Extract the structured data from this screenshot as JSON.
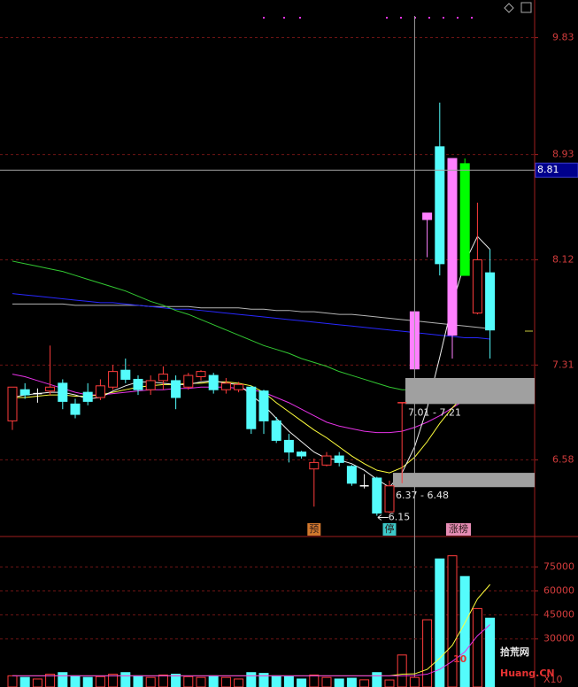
{
  "chart_data": [
    {
      "type": "candlestick",
      "ylim": [
        5.99,
        10.12
      ],
      "yticks": [
        9.83,
        8.93,
        8.12,
        7.31,
        6.58
      ],
      "up_color": "#ff3c3c",
      "open": [
        6.88,
        7.12,
        7.08,
        7.11,
        7.17,
        7.01,
        7.1,
        7.06,
        7.14,
        7.27,
        7.2,
        7.12,
        7.19,
        7.19,
        7.14,
        7.22,
        7.23,
        7.12,
        7.12,
        7.14,
        7.11,
        6.88,
        6.73,
        6.64,
        6.51,
        6.54,
        6.61,
        6.53,
        6.38,
        6.44,
        6.18,
        7.01,
        7.28,
        8.43,
        8.99,
        7.54,
        8.86,
        7.71,
        8.02
      ],
      "high": [
        7.14,
        7.17,
        7.13,
        7.46,
        7.2,
        7.05,
        7.17,
        7.2,
        7.31,
        7.36,
        7.23,
        7.23,
        7.3,
        7.23,
        7.25,
        7.27,
        7.25,
        7.21,
        7.18,
        7.15,
        7.12,
        6.91,
        6.78,
        6.65,
        6.59,
        6.64,
        6.64,
        6.54,
        6.47,
        6.45,
        6.42,
        7.02,
        7.72,
        8.48,
        9.33,
        8.9,
        8.9,
        8.56,
        8.2
      ],
      "low": [
        6.81,
        7.05,
        7.02,
        7.08,
        6.97,
        6.9,
        7.0,
        7.04,
        7.12,
        7.17,
        7.08,
        7.08,
        7.12,
        6.97,
        7.12,
        7.19,
        7.09,
        7.09,
        7.1,
        6.78,
        6.78,
        6.71,
        6.56,
        6.59,
        6.22,
        6.53,
        6.53,
        6.38,
        6.36,
        6.15,
        6.17,
        6.4,
        7.28,
        8.14,
        8.0,
        7.36,
        8.0,
        7.7,
        7.36
      ],
      "close": [
        7.14,
        7.08,
        7.09,
        7.14,
        7.03,
        6.93,
        7.03,
        7.15,
        7.26,
        7.2,
        7.12,
        7.19,
        7.24,
        7.06,
        7.23,
        7.26,
        7.12,
        7.17,
        7.16,
        6.82,
        6.88,
        6.73,
        6.64,
        6.61,
        6.56,
        6.61,
        6.56,
        6.4,
        6.38,
        6.17,
        6.38,
        7.02,
        7.72,
        8.48,
        8.09,
        8.9,
        8.0,
        8.12,
        7.58
      ],
      "colors": [
        "#ff3c3c",
        "#54fcfc",
        "#ffffff",
        "#ff3c3c",
        "#54fcfc",
        "#54fcfc",
        "#54fcfc",
        "#ff3c3c",
        "#ff3c3c",
        "#54fcfc",
        "#54fcfc",
        "#ff3c3c",
        "#ff3c3c",
        "#54fcfc",
        "#ff3c3c",
        "#ff3c3c",
        "#54fcfc",
        "#ff3c3c",
        "#ff3c3c",
        "#54fcfc",
        "#54fcfc",
        "#54fcfc",
        "#54fcfc",
        "#54fcfc",
        "#ff3c3c",
        "#ff3c3c",
        "#54fcfc",
        "#54fcfc",
        "#ffffff",
        "#54fcfc",
        "#ff3c3c",
        "#ff3c3c",
        "#ff80ff",
        "#ff80ff",
        "#54fcfc",
        "#ff80ff",
        "#00ff00",
        "#ff3c3c",
        "#54fcfc"
      ],
      "moving_averages": [
        {
          "color": "#b4b4b4",
          "values": [
            7.78,
            7.78,
            7.78,
            7.78,
            7.78,
            7.77,
            7.77,
            7.77,
            7.77,
            7.77,
            7.77,
            7.76,
            7.76,
            7.76,
            7.76,
            7.75,
            7.75,
            7.75,
            7.75,
            7.74,
            7.74,
            7.73,
            7.73,
            7.72,
            7.72,
            7.71,
            7.7,
            7.7,
            7.69,
            7.68,
            7.67,
            7.66,
            7.65,
            7.64,
            7.63,
            7.62,
            7.61,
            7.6,
            7.59
          ]
        },
        {
          "color": "#2828ff",
          "values": [
            7.86,
            7.85,
            7.84,
            7.83,
            7.82,
            7.81,
            7.8,
            7.79,
            7.79,
            7.78,
            7.77,
            7.76,
            7.75,
            7.74,
            7.74,
            7.73,
            7.72,
            7.71,
            7.7,
            7.69,
            7.68,
            7.67,
            7.66,
            7.65,
            7.64,
            7.63,
            7.62,
            7.61,
            7.6,
            7.59,
            7.58,
            7.57,
            7.56,
            7.55,
            7.54,
            7.53,
            7.52,
            7.52,
            7.51
          ]
        },
        {
          "color": "#32c832",
          "values": [
            8.11,
            8.09,
            8.07,
            8.05,
            8.03,
            8.0,
            7.97,
            7.94,
            7.91,
            7.88,
            7.84,
            7.8,
            7.77,
            7.73,
            7.7,
            7.66,
            7.62,
            7.58,
            7.54,
            7.5,
            7.46,
            7.43,
            7.4,
            7.36,
            7.33,
            7.3,
            7.26,
            7.23,
            7.2,
            7.17,
            7.14,
            7.12,
            7.12,
            7.12,
            7.13,
            7.13,
            7.14,
            7.15,
            7.15
          ]
        },
        {
          "color": "#e632e6",
          "values": [
            7.24,
            7.22,
            7.19,
            7.16,
            7.13,
            7.1,
            7.08,
            7.08,
            7.09,
            7.1,
            7.11,
            7.12,
            7.12,
            7.13,
            7.13,
            7.14,
            7.14,
            7.14,
            7.13,
            7.12,
            7.1,
            7.06,
            7.02,
            6.97,
            6.92,
            6.87,
            6.84,
            6.82,
            6.8,
            6.79,
            6.79,
            6.8,
            6.83,
            6.87,
            6.92,
            6.98,
            7.04,
            7.08,
            7.11
          ]
        },
        {
          "color": "#ffff3c",
          "values": [
            7.06,
            7.06,
            7.07,
            7.08,
            7.08,
            7.07,
            7.07,
            7.08,
            7.1,
            7.12,
            7.14,
            7.15,
            7.16,
            7.16,
            7.17,
            7.17,
            7.18,
            7.18,
            7.17,
            7.15,
            7.1,
            7.02,
            6.95,
            6.88,
            6.81,
            6.75,
            6.68,
            6.61,
            6.55,
            6.5,
            6.48,
            6.52,
            6.6,
            6.72,
            6.86,
            6.98,
            7.08,
            7.14,
            7.2
          ]
        },
        {
          "color": "#f0f0f0",
          "values": [
            7.06,
            7.08,
            7.09,
            7.1,
            7.1,
            7.08,
            7.05,
            7.06,
            7.11,
            7.15,
            7.18,
            7.18,
            7.17,
            7.16,
            7.16,
            7.18,
            7.19,
            7.17,
            7.16,
            7.08,
            7.0,
            6.9,
            6.8,
            6.72,
            6.64,
            6.59,
            6.58,
            6.55,
            6.5,
            6.43,
            6.37,
            6.48,
            6.68,
            6.98,
            7.37,
            7.78,
            8.1,
            8.3,
            8.2
          ]
        }
      ],
      "crosshair_price": 8.81,
      "zones": [
        {
          "low": 7.01,
          "high": 7.21,
          "label": "7.01 - 7.21"
        },
        {
          "low": 6.37,
          "high": 6.48,
          "label": "6.37 - 6.48"
        }
      ],
      "low_marker": 6.15,
      "events": [
        null,
        null,
        null,
        null,
        null,
        null,
        null,
        null,
        null,
        null,
        null,
        null,
        null,
        null,
        null,
        null,
        null,
        null,
        null,
        null,
        null,
        null,
        null,
        null,
        {
          "label": "预",
          "color": "#d2782d"
        },
        null,
        null,
        null,
        null,
        null,
        {
          "label": "停",
          "color": "#3cc8c8"
        },
        null,
        null,
        null,
        null,
        {
          "label": "涨榜",
          "color": "#e68cb4"
        },
        null,
        null,
        null
      ]
    },
    {
      "type": "volume_bar",
      "ylim": [
        0,
        94000
      ],
      "yticks": [
        30000,
        45000,
        60000,
        75000
      ],
      "unit_label": "X10",
      "values": [
        7000,
        6000,
        5000,
        8000,
        9000,
        7000,
        6000,
        6500,
        8000,
        9000,
        7000,
        6000,
        7500,
        8000,
        6500,
        6000,
        7000,
        6000,
        5000,
        9000,
        8500,
        7000,
        6500,
        5000,
        7500,
        6000,
        5000,
        5500,
        4500,
        9000,
        4400,
        20000,
        6000,
        42000,
        80000,
        82000,
        69000,
        49000,
        43000
      ],
      "moving_averages": [
        {
          "color": "#ffff3c",
          "values": [
            7000,
            7000,
            7000,
            7000,
            7000,
            7000,
            7000,
            7000,
            7000,
            7000,
            7000,
            7000,
            7000,
            7000,
            7000,
            7000,
            7000,
            7000,
            7000,
            7000,
            7000,
            7000,
            7000,
            7000,
            7000,
            7000,
            7000,
            7000,
            7000,
            7000,
            7000,
            8000,
            8200,
            11000,
            18000,
            26000,
            40000,
            55000,
            64000
          ]
        },
        {
          "color": "#e632e6",
          "values": [
            7000,
            7000,
            7000,
            7000,
            7000,
            7000,
            7000,
            7000,
            7000,
            7000,
            7000,
            7000,
            7000,
            7000,
            7000,
            7000,
            7000,
            7000,
            7000,
            7000,
            7000,
            7000,
            7000,
            7000,
            7000,
            7000,
            7000,
            7000,
            7000,
            7000,
            7000,
            7000,
            7200,
            8000,
            11000,
            16000,
            22000,
            32000,
            39000
          ]
        }
      ]
    }
  ],
  "watermark": {
    "number": "10",
    "site": "拾荒网",
    "domain": "Huang.CN"
  }
}
